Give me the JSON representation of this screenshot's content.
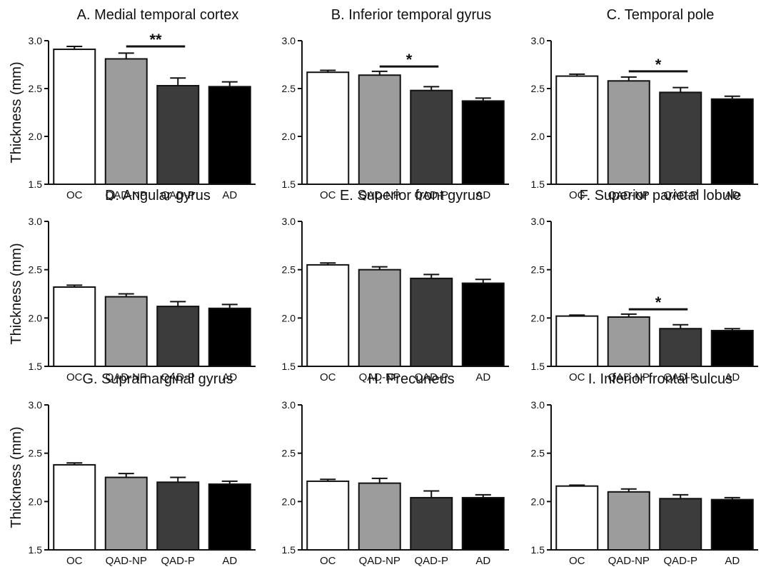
{
  "categories": [
    "OC",
    "QAD-NP",
    "QAD-P",
    "AD"
  ],
  "colors": [
    "#ffffff",
    "#9c9c9c",
    "#3c3c3c",
    "#000000"
  ],
  "ylabel": "Thickness (mm)",
  "chart_data": [
    {
      "type": "bar",
      "title": "A. Medial temporal cortex",
      "ylabel": "Thickness (mm)",
      "ylim": [
        1.5,
        3.0
      ],
      "yticks": [
        "1.5",
        "2.0",
        "2.5",
        "3.0"
      ],
      "categories": [
        "OC",
        "QAD-NP",
        "QAD-P",
        "AD"
      ],
      "values": [
        2.91,
        2.81,
        2.53,
        2.52
      ],
      "errors": [
        0.03,
        0.06,
        0.08,
        0.05
      ],
      "significance": {
        "label": "**",
        "from": 1,
        "to": 2,
        "y": 2.94
      }
    },
    {
      "type": "bar",
      "title": "B. Inferior temporal gyrus",
      "ylabel": "",
      "ylim": [
        1.5,
        3.0
      ],
      "yticks": [
        "1.5",
        "2.0",
        "2.5",
        "3.0"
      ],
      "categories": [
        "OC",
        "QAD-NP",
        "QAD-P",
        "AD"
      ],
      "values": [
        2.67,
        2.64,
        2.48,
        2.37
      ],
      "errors": [
        0.02,
        0.04,
        0.04,
        0.03
      ],
      "significance": {
        "label": "*",
        "from": 1,
        "to": 2,
        "y": 2.73
      }
    },
    {
      "type": "bar",
      "title": "C. Temporal pole",
      "ylabel": "",
      "ylim": [
        1.5,
        3.0
      ],
      "yticks": [
        "1.5",
        "2.0",
        "2.5",
        "3.0"
      ],
      "categories": [
        "OC",
        "QAD-NP",
        "QAD-P",
        "AD"
      ],
      "values": [
        2.63,
        2.58,
        2.46,
        2.39
      ],
      "errors": [
        0.02,
        0.04,
        0.05,
        0.03
      ],
      "significance": {
        "label": "*",
        "from": 1,
        "to": 2,
        "y": 2.68
      }
    },
    {
      "type": "bar",
      "title": "D. Angular gyrus",
      "ylabel": "Thickness (mm)",
      "ylim": [
        1.5,
        3.0
      ],
      "yticks": [
        "1.5",
        "2.0",
        "2.5",
        "3.0"
      ],
      "categories": [
        "OC",
        "QAD-NP",
        "QAD-P",
        "AD"
      ],
      "values": [
        2.32,
        2.22,
        2.12,
        2.1
      ],
      "errors": [
        0.02,
        0.03,
        0.05,
        0.04
      ],
      "significance": null
    },
    {
      "type": "bar",
      "title": "E. Superior front gyrus",
      "ylabel": "",
      "ylim": [
        1.5,
        3.0
      ],
      "yticks": [
        "1.5",
        "2.0",
        "2.5",
        "3.0"
      ],
      "categories": [
        "OC",
        "QAD-NP",
        "QAD-P",
        "AD"
      ],
      "values": [
        2.55,
        2.5,
        2.41,
        2.36
      ],
      "errors": [
        0.02,
        0.03,
        0.04,
        0.04
      ],
      "significance": null
    },
    {
      "type": "bar",
      "title": "F. Superior parietal lobule",
      "ylabel": "",
      "ylim": [
        1.5,
        3.0
      ],
      "yticks": [
        "1.5",
        "2.0",
        "2.5",
        "3.0"
      ],
      "categories": [
        "OC",
        "QAD-NP",
        "QAD-P",
        "AD"
      ],
      "values": [
        2.02,
        2.01,
        1.89,
        1.87
      ],
      "errors": [
        0.01,
        0.03,
        0.04,
        0.02
      ],
      "significance": {
        "label": "*",
        "from": 1,
        "to": 2,
        "y": 2.09
      }
    },
    {
      "type": "bar",
      "title": "G. Supramarginal gyrus",
      "ylabel": "Thickness (mm)",
      "ylim": [
        1.5,
        3.0
      ],
      "yticks": [
        "1.5",
        "2.0",
        "2.5",
        "3.0"
      ],
      "categories": [
        "OC",
        "QAD-NP",
        "QAD-P",
        "AD"
      ],
      "values": [
        2.38,
        2.25,
        2.2,
        2.18
      ],
      "errors": [
        0.02,
        0.04,
        0.05,
        0.03
      ],
      "significance": null
    },
    {
      "type": "bar",
      "title": "H. Precuneus",
      "ylabel": "",
      "ylim": [
        1.5,
        3.0
      ],
      "yticks": [
        "1.5",
        "2.0",
        "2.5",
        "3.0"
      ],
      "categories": [
        "OC",
        "QAD-NP",
        "QAD-P",
        "AD"
      ],
      "values": [
        2.21,
        2.19,
        2.04,
        2.04
      ],
      "errors": [
        0.02,
        0.05,
        0.07,
        0.03
      ],
      "significance": null
    },
    {
      "type": "bar",
      "title": "I. Inferior frontal sulcus",
      "ylabel": "",
      "ylim": [
        1.5,
        3.0
      ],
      "yticks": [
        "1.5",
        "2.0",
        "2.5",
        "3.0"
      ],
      "categories": [
        "OC",
        "QAD-NP",
        "QAD-P",
        "AD"
      ],
      "values": [
        2.16,
        2.1,
        2.03,
        2.02
      ],
      "errors": [
        0.01,
        0.03,
        0.04,
        0.02
      ],
      "significance": null
    }
  ]
}
